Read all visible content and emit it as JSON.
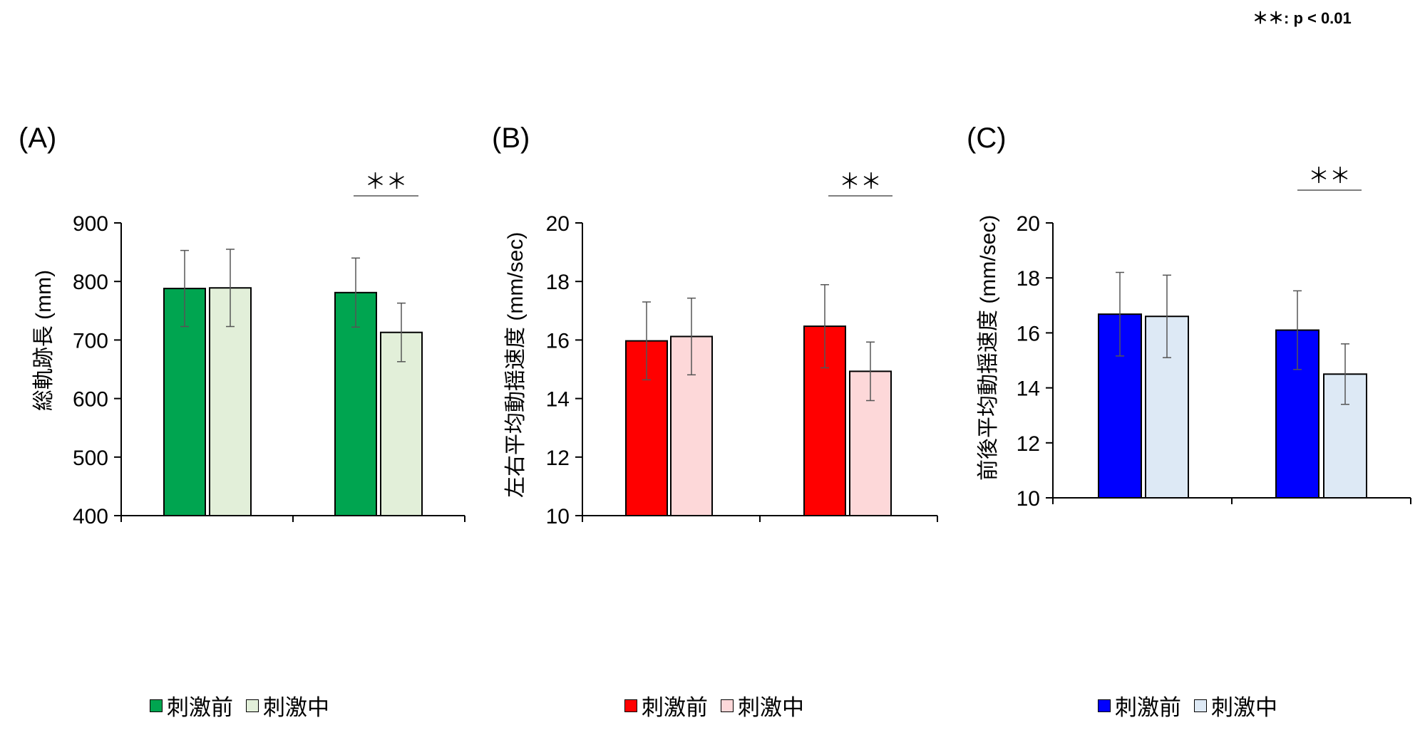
{
  "significance_note": "＊＊: p < 0.01",
  "chart_data": [
    {
      "type": "bar",
      "panel_label": "(A)",
      "ylabel": "総軌跡長 (mm)",
      "ylim": [
        400,
        900
      ],
      "yticks": [
        "400",
        "500",
        "600",
        "700",
        "800",
        "900"
      ],
      "groups": 2,
      "series": [
        {
          "name": "刺激前",
          "color": "#00a550",
          "values": [
            788,
            781
          ],
          "errors": [
            65,
            59
          ]
        },
        {
          "name": "刺激中",
          "color": "#e2efd9",
          "values": [
            789,
            713
          ],
          "errors": [
            66,
            50
          ]
        }
      ],
      "significance": [
        {
          "group": 2,
          "label": "＊＊"
        }
      ],
      "legend": [
        "刺激前",
        "刺激中"
      ]
    },
    {
      "type": "bar",
      "panel_label": "(B)",
      "ylabel": "左右平均動揺速度 (mm/sec)",
      "ylim": [
        10,
        20
      ],
      "yticks": [
        "10",
        "12",
        "14",
        "16",
        "18",
        "20"
      ],
      "groups": 2,
      "series": [
        {
          "name": "刺激前",
          "color": "#ff0000",
          "values": [
            15.97,
            16.47
          ],
          "errors": [
            1.33,
            1.42
          ]
        },
        {
          "name": "刺激中",
          "color": "#fdd8d9",
          "values": [
            16.12,
            14.93
          ],
          "errors": [
            1.31,
            1.0
          ]
        }
      ],
      "significance": [
        {
          "group": 2,
          "label": "＊＊"
        }
      ],
      "legend": [
        "刺激前",
        "刺激中"
      ]
    },
    {
      "type": "bar",
      "panel_label": "(C)",
      "ylabel": "前後平均動揺速度 (mm/sec)",
      "ylim": [
        10,
        20
      ],
      "yticks": [
        "10",
        "12",
        "14",
        "16",
        "18",
        "20"
      ],
      "groups": 2,
      "series": [
        {
          "name": "刺激前",
          "color": "#0000ff",
          "values": [
            16.68,
            16.1
          ],
          "errors": [
            1.52,
            1.43
          ]
        },
        {
          "name": "刺激中",
          "color": "#dde9f5",
          "values": [
            16.6,
            14.5
          ],
          "errors": [
            1.5,
            1.1
          ]
        }
      ],
      "significance": [
        {
          "group": 2,
          "label": "＊＊"
        }
      ],
      "legend": [
        "刺激前",
        "刺激中"
      ]
    }
  ]
}
